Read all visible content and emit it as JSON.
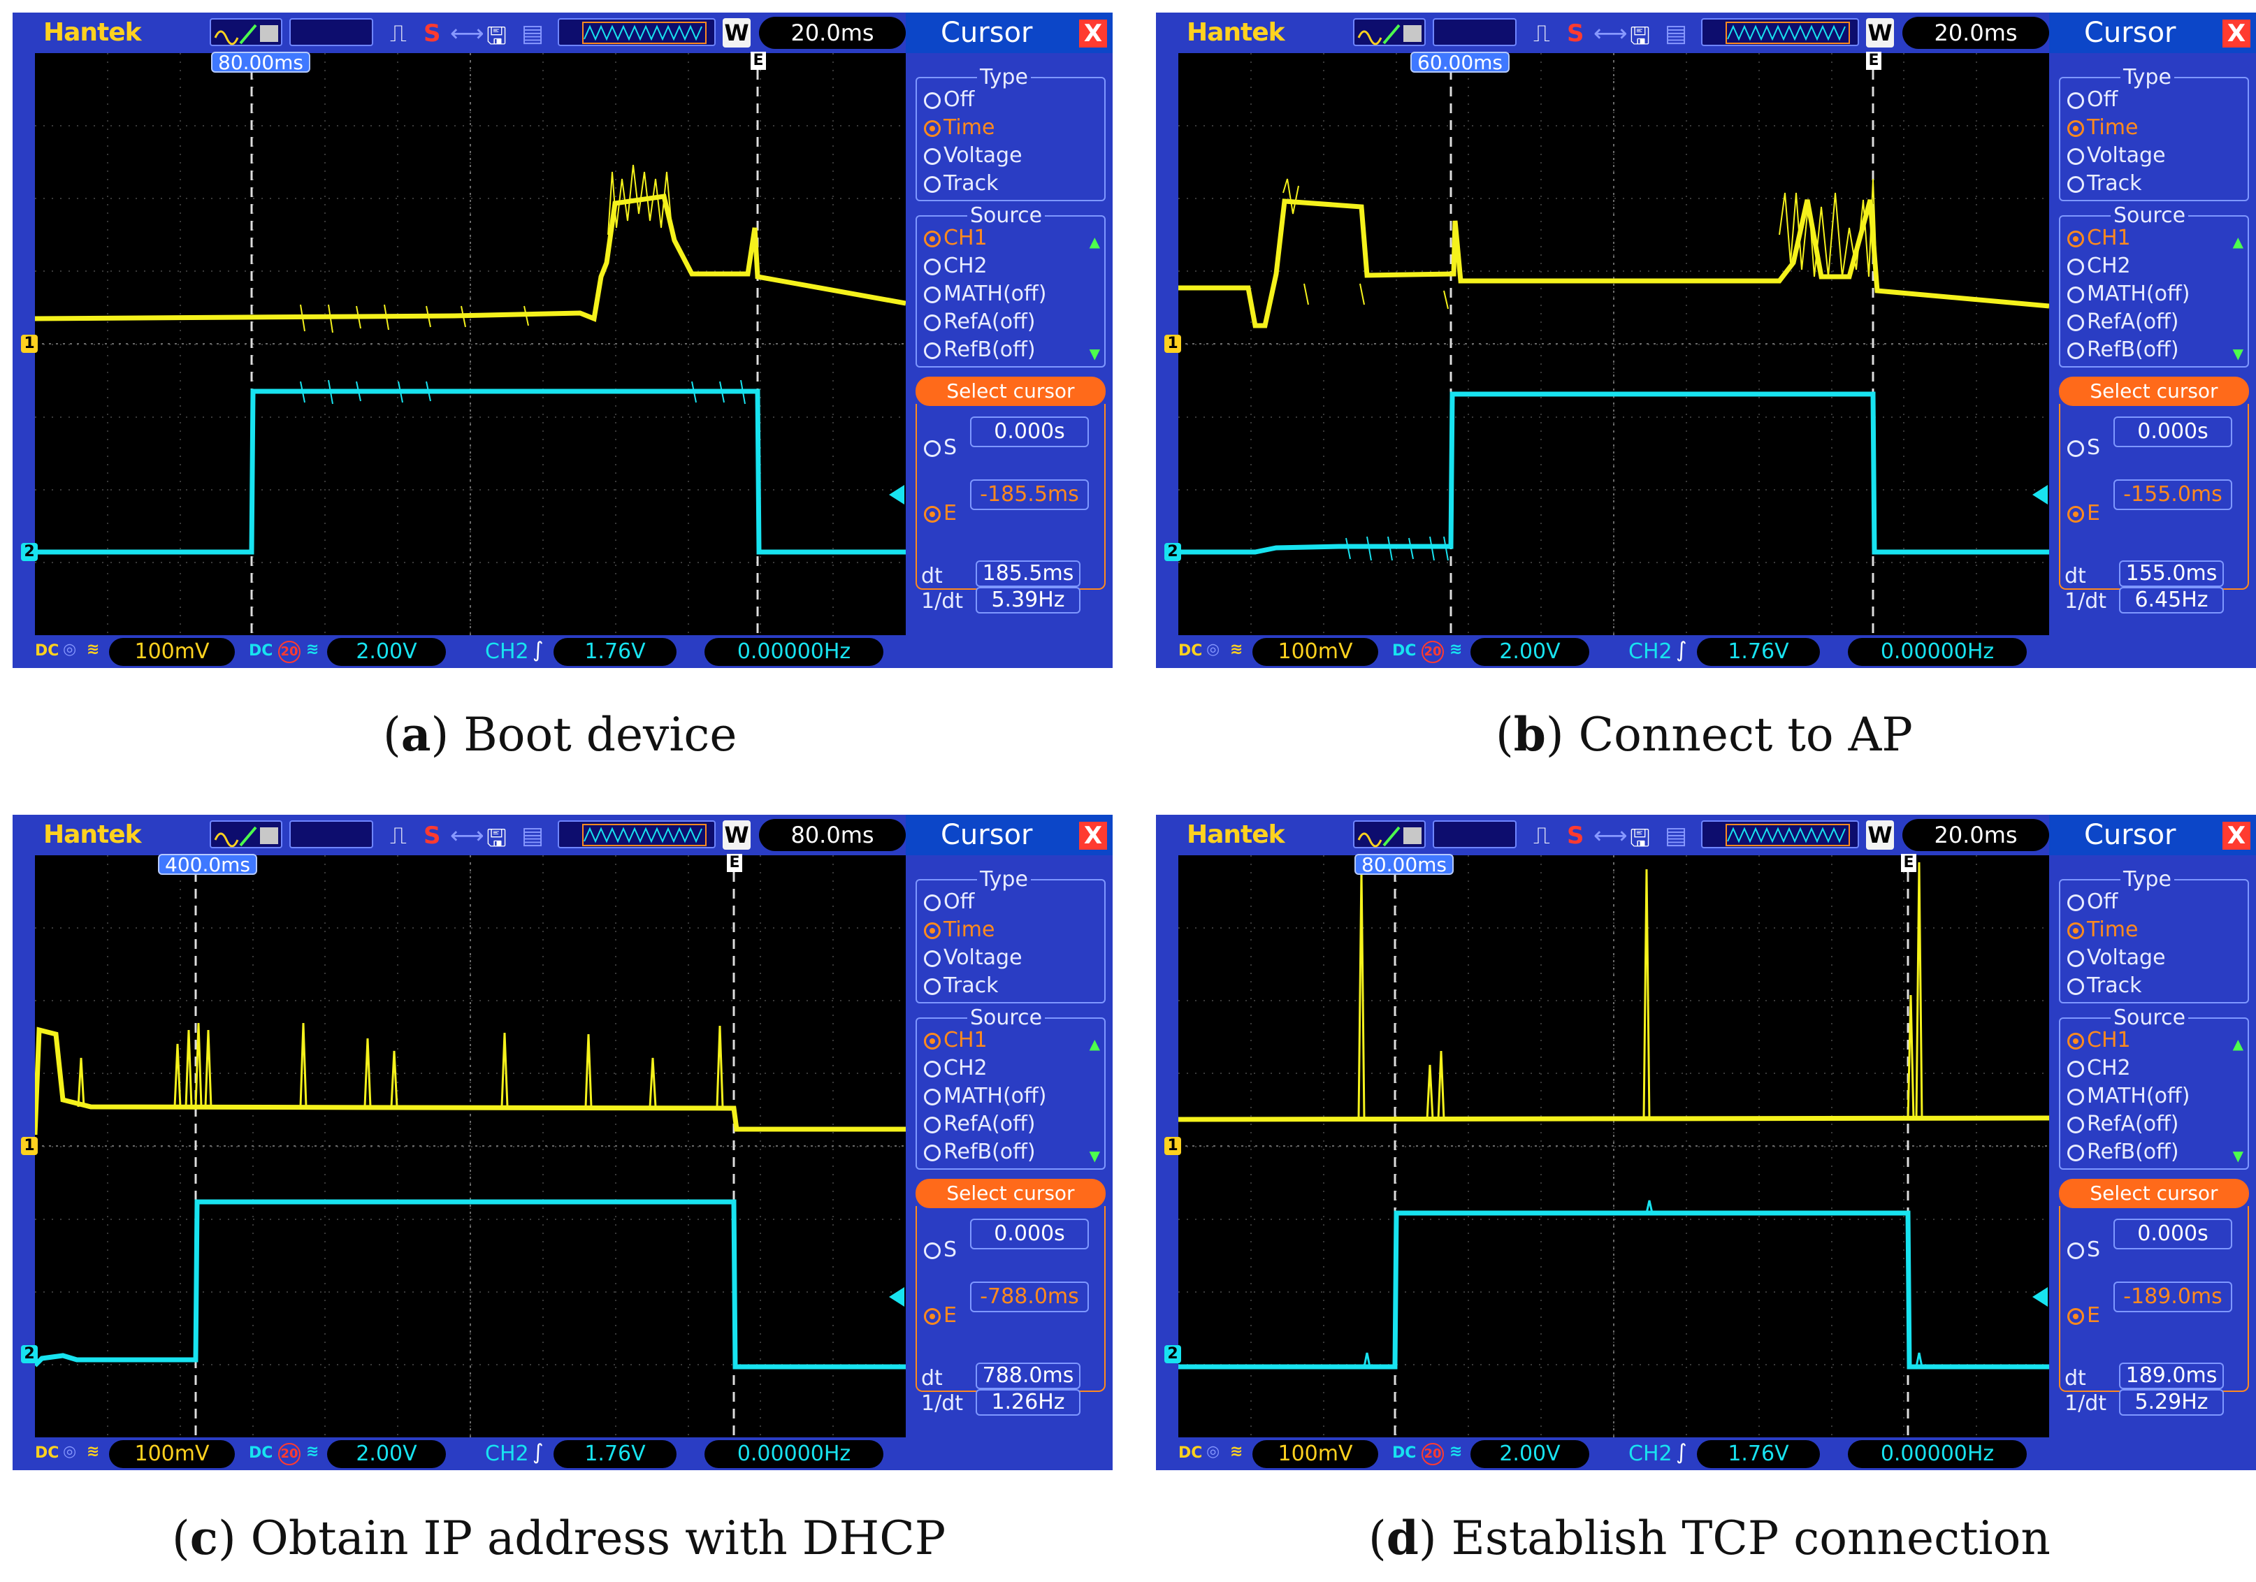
{
  "colors": {
    "scope_bg": "#2a3dc4",
    "screen_bg": "#000000",
    "ch1": "#f5f21c",
    "ch2": "#18e3f0",
    "accent": "#ff6a1a"
  },
  "panels": [
    {
      "id": "a",
      "brand": "Hantek",
      "timebase": "20.0ms",
      "w_label": "W",
      "s_label": "S",
      "cursor_s_label": "80.00ms",
      "e_marker": "E",
      "ch1_marker": "1",
      "ch2_marker": "2",
      "bottom": {
        "dc1": "DC",
        "ch1_volt": "100mV",
        "dc2": "DC",
        "bw": "20",
        "ch2_volt": "2.00V",
        "trig_src": "CH2",
        "trig_level": "1.76V",
        "freq": "0.00000Hz"
      },
      "sidebar": {
        "title": "Cursor",
        "close": "X",
        "type_label": "Type",
        "types": [
          "Off",
          "Time",
          "Voltage",
          "Track"
        ],
        "type_selected": 1,
        "source_label": "Source",
        "sources": [
          "CH1",
          "CH2",
          "MATH(off)",
          "RefA(off)",
          "RefB(off)"
        ],
        "source_selected": 0,
        "select_cursor": "Select cursor",
        "s_label": "S",
        "s_value": "0.000s",
        "e_label": "E",
        "e_value": "-185.5ms",
        "dt_label": "dt",
        "dt_value": "185.5ms",
        "inv_label": "1/dt",
        "inv_value": "5.39Hz"
      },
      "caption_letter": "a",
      "caption_text": "Boot device"
    },
    {
      "id": "b",
      "brand": "Hantek",
      "timebase": "20.0ms",
      "w_label": "W",
      "s_label": "S",
      "cursor_s_label": "60.00ms",
      "e_marker": "E",
      "ch1_marker": "1",
      "ch2_marker": "2",
      "bottom": {
        "dc1": "DC",
        "ch1_volt": "100mV",
        "dc2": "DC",
        "bw": "20",
        "ch2_volt": "2.00V",
        "trig_src": "CH2",
        "trig_level": "1.76V",
        "freq": "0.00000Hz"
      },
      "sidebar": {
        "title": "Cursor",
        "close": "X",
        "type_label": "Type",
        "types": [
          "Off",
          "Time",
          "Voltage",
          "Track"
        ],
        "type_selected": 1,
        "source_label": "Source",
        "sources": [
          "CH1",
          "CH2",
          "MATH(off)",
          "RefA(off)",
          "RefB(off)"
        ],
        "source_selected": 0,
        "select_cursor": "Select cursor",
        "s_label": "S",
        "s_value": "0.000s",
        "e_label": "E",
        "e_value": "-155.0ms",
        "dt_label": "dt",
        "dt_value": "155.0ms",
        "inv_label": "1/dt",
        "inv_value": "6.45Hz"
      },
      "caption_letter": "b",
      "caption_text": "Connect to AP"
    },
    {
      "id": "c",
      "brand": "Hantek",
      "timebase": "80.0ms",
      "w_label": "W",
      "s_label": "S",
      "cursor_s_label": "400.0ms",
      "e_marker": "E",
      "ch1_marker": "1",
      "ch2_marker": "2",
      "bottom": {
        "dc1": "DC",
        "ch1_volt": "100mV",
        "dc2": "DC",
        "bw": "20",
        "ch2_volt": "2.00V",
        "trig_src": "CH2",
        "trig_level": "1.76V",
        "freq": "0.00000Hz"
      },
      "sidebar": {
        "title": "Cursor",
        "close": "X",
        "type_label": "Type",
        "types": [
          "Off",
          "Time",
          "Voltage",
          "Track"
        ],
        "type_selected": 1,
        "source_label": "Source",
        "sources": [
          "CH1",
          "CH2",
          "MATH(off)",
          "RefA(off)",
          "RefB(off)"
        ],
        "source_selected": 0,
        "select_cursor": "Select cursor",
        "s_label": "S",
        "s_value": "0.000s",
        "e_label": "E",
        "e_value": "-788.0ms",
        "dt_label": "dt",
        "dt_value": "788.0ms",
        "inv_label": "1/dt",
        "inv_value": "1.26Hz"
      },
      "caption_letter": "c",
      "caption_text": "Obtain IP address with DHCP"
    },
    {
      "id": "d",
      "brand": "Hantek",
      "timebase": "20.0ms",
      "w_label": "W",
      "s_label": "S",
      "cursor_s_label": "80.00ms",
      "e_marker": "E",
      "ch1_marker": "1",
      "ch2_marker": "2",
      "bottom": {
        "dc1": "DC",
        "ch1_volt": "100mV",
        "dc2": "DC",
        "bw": "20",
        "ch2_volt": "2.00V",
        "trig_src": "CH2",
        "trig_level": "1.76V",
        "freq": "0.00000Hz"
      },
      "sidebar": {
        "title": "Cursor",
        "close": "X",
        "type_label": "Type",
        "types": [
          "Off",
          "Time",
          "Voltage",
          "Track"
        ],
        "type_selected": 1,
        "source_label": "Source",
        "sources": [
          "CH1",
          "CH2",
          "MATH(off)",
          "RefA(off)",
          "RefB(off)"
        ],
        "source_selected": 0,
        "select_cursor": "Select cursor",
        "s_label": "S",
        "s_value": "0.000s",
        "e_label": "E",
        "e_value": "-189.0ms",
        "dt_label": "dt",
        "dt_value": "189.0ms",
        "inv_label": "1/dt",
        "inv_value": "5.29Hz"
      },
      "caption_letter": "d",
      "caption_text": "Establish TCP connection"
    }
  ]
}
